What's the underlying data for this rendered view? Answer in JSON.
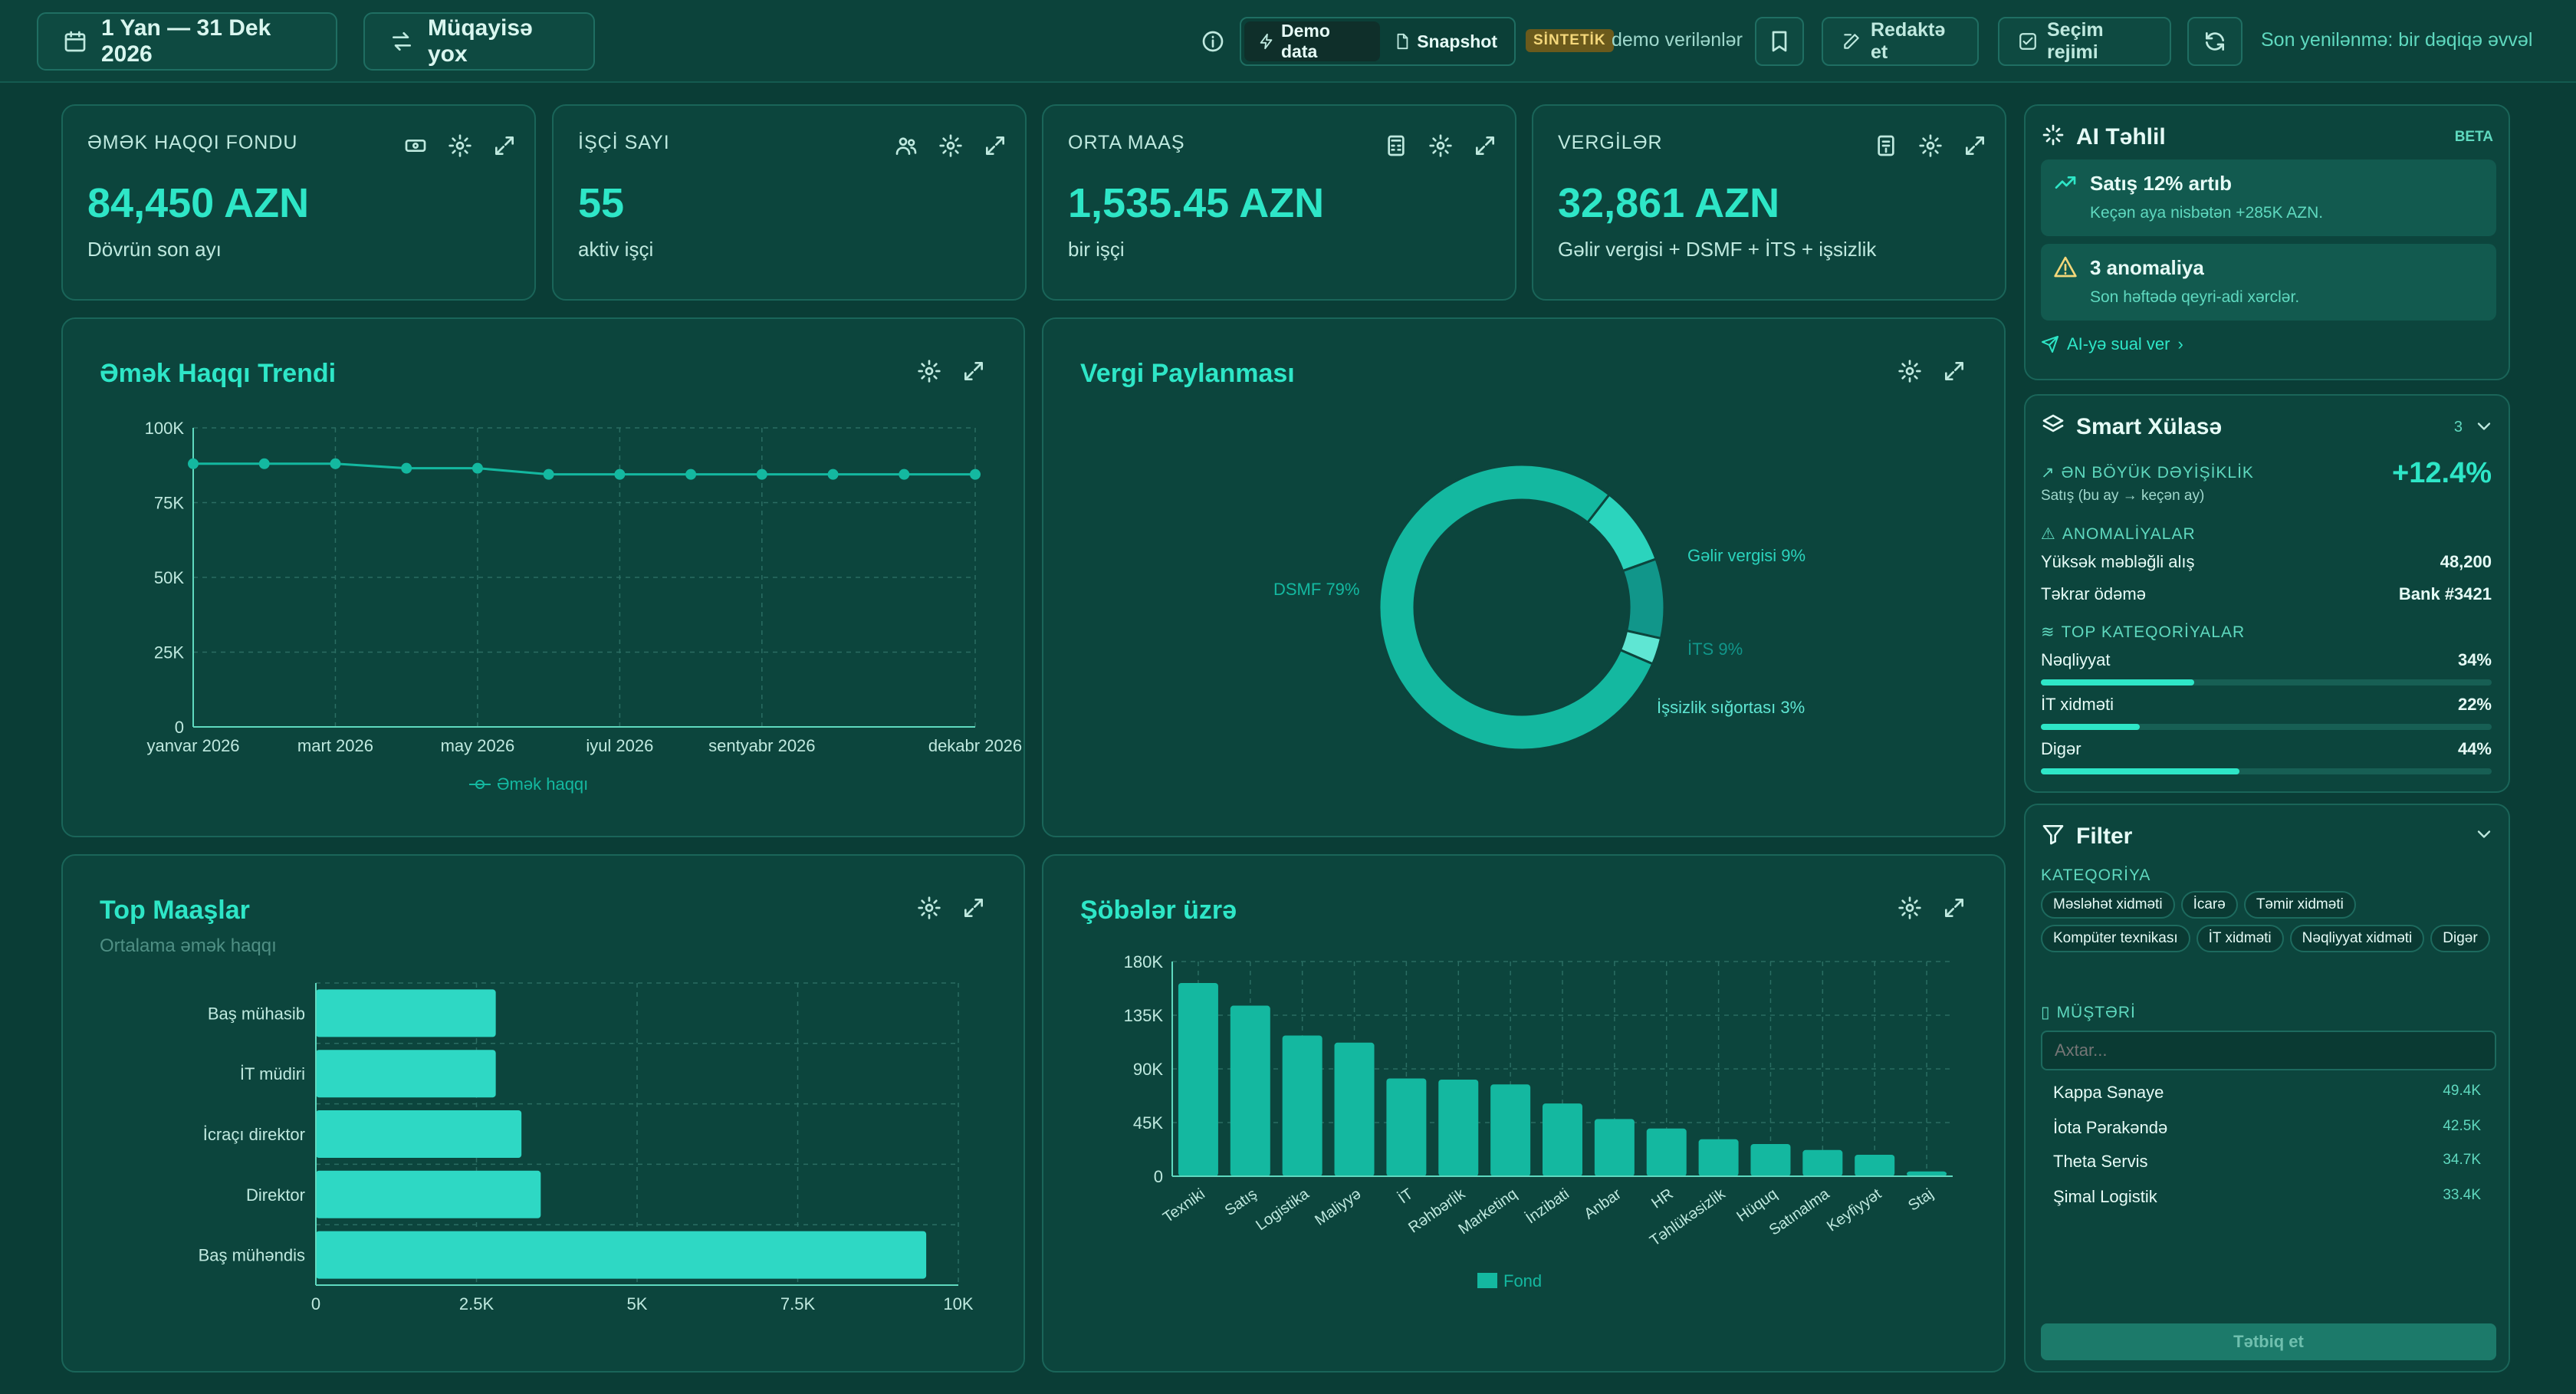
{
  "topbar": {
    "date_range": "1 Yan — 31 Dek 2026",
    "compare": "Müqayisə yox",
    "demo_data": "Demo data",
    "snapshot": "Snapshot",
    "synthetic_badge": "SİNTETİK",
    "synthetic_text": "demo verilənlər",
    "edit": "Redaktə et",
    "selection_mode": "Seçim rejimi",
    "last_update": "Son yenilənmə: bir dəqiqə əvvəl"
  },
  "kpis": [
    {
      "title": "ƏMƏK HAQQI FONDU",
      "value": "84,450 AZN",
      "sub": "Dövrün son ayı",
      "icon": "banknote-icon"
    },
    {
      "title": "İŞÇİ SAYI",
      "value": "55",
      "sub": "aktiv işçi",
      "icon": "users-icon"
    },
    {
      "title": "ORTA MAAŞ",
      "value": "1,535.45 AZN",
      "sub": "bir işçi",
      "icon": "calculator-icon"
    },
    {
      "title": "VERGİLƏR",
      "value": "32,861 AZN",
      "sub": "Gəlir vergisi + DSMF + İTS + işsizlik",
      "icon": "receipt-icon"
    }
  ],
  "charts": {
    "trend_title": "Əmək Haqqı Trendi",
    "tax_title": "Vergi Paylanması",
    "top_title": "Top Maaşlar",
    "top_sub": "Ortalama əmək haqqı",
    "dept_title": "Şöbələr üzrə"
  },
  "chart_data": [
    {
      "type": "line",
      "title": "Əmək Haqqı Trendi",
      "x": [
        "yanvar 2026",
        "fevral 2026",
        "mart 2026",
        "aprel 2026",
        "may 2026",
        "iyun 2026",
        "iyul 2026",
        "avqust 2026",
        "sentyabr 2026",
        "oktyabr 2026",
        "noyabr 2026",
        "dekabr 2026"
      ],
      "x_ticks": [
        "yanvar 2026",
        "mart 2026",
        "may 2026",
        "iyul 2026",
        "sentyabr 2026",
        "dekabr 2026"
      ],
      "series": [
        {
          "name": "Əmək haqqı",
          "values": [
            88000,
            88000,
            88000,
            86500,
            86500,
            84450,
            84450,
            84450,
            84450,
            84450,
            84450,
            84450
          ]
        }
      ],
      "ylim": [
        0,
        100000
      ],
      "y_ticks": [
        "0",
        "25K",
        "50K",
        "75K",
        "100K"
      ],
      "grid": true,
      "legend": "bottom"
    },
    {
      "type": "pie",
      "title": "Vergi Paylanması",
      "labels": [
        "DSMF",
        "Gəlir vergisi",
        "İTS",
        "İşsizlik sığortası"
      ],
      "values": [
        79,
        9,
        9,
        3
      ],
      "display": [
        "DSMF 79%",
        "Gəlir vergisi 9%",
        "İTS 9%",
        "İşsizlik sığortası 3%"
      ]
    },
    {
      "type": "bar",
      "title": "Top Maaşlar",
      "subtitle": "Ortalama əmək haqqı",
      "orientation": "horizontal",
      "categories": [
        "Baş mühasib",
        "İT müdiri",
        "İcraçı direktor",
        "Direktor",
        "Baş mühəndis"
      ],
      "values": [
        2800,
        2800,
        3200,
        3500,
        9500
      ],
      "xlim": [
        0,
        10000
      ],
      "x_ticks": [
        "0",
        "2.5K",
        "5K",
        "7.5K",
        "10K"
      ],
      "grid": true
    },
    {
      "type": "bar",
      "title": "Şöbələr üzrə",
      "categories": [
        "Texniki",
        "Satış",
        "Logistika",
        "Maliyyə",
        "İT",
        "Rəhbərlik",
        "Marketinq",
        "İnzibati",
        "Anbar",
        "HR",
        "Təhlükəsizlik",
        "Hüquq",
        "Satınalma",
        "Keyfiyyət",
        "Staj"
      ],
      "series": [
        {
          "name": "Fond",
          "values": [
            162000,
            143000,
            118000,
            112000,
            82000,
            81000,
            77000,
            61000,
            48000,
            40000,
            31000,
            27000,
            22000,
            18000,
            4000
          ]
        }
      ],
      "ylim": [
        0,
        180000
      ],
      "y_ticks": [
        "0",
        "45K",
        "90K",
        "135K",
        "180K"
      ],
      "grid": true,
      "legend": "bottom"
    }
  ],
  "ai": {
    "title": "AI Təhlil",
    "beta": "BETA",
    "items": [
      {
        "title": "Satış 12% artıb",
        "text": "Keçən aya nisbətən +285K AZN."
      },
      {
        "title": "3 anomaliya",
        "text": "Son həftədə qeyri-adi xərclər."
      }
    ],
    "ask": "AI-yə sual ver"
  },
  "summary": {
    "title": "Smart Xülasə",
    "count": "3",
    "biggest_h": "ƏN BÖYÜK DƏYİŞİKLİK",
    "biggest_sub": "Satış (bu ay → keçən ay)",
    "biggest_value": "+12.4%",
    "anom_h": "ANOMALİYALAR",
    "anomalies": [
      {
        "label": "Yüksək məbləğli alış",
        "value": "48,200"
      },
      {
        "label": "Təkrar ödəmə",
        "value": "Bank #3421"
      }
    ],
    "top_h": "TOP KATEQORİYALAR",
    "categories": [
      {
        "label": "Nəqliyyat",
        "value": "34%",
        "pct": 34
      },
      {
        "label": "İT xidməti",
        "value": "22%",
        "pct": 22
      },
      {
        "label": "Digər",
        "value": "44%",
        "pct": 44
      }
    ]
  },
  "filter": {
    "title": "Filter",
    "cat_h": "KATEQORİYA",
    "chips": [
      "Məsləhət xidməti",
      "İcarə",
      "Təmir xidməti",
      "Kompüter texnikası",
      "İT xidməti",
      "Nəqliyyat xidməti",
      "Digər"
    ],
    "cust_h": "MÜŞTƏRİ",
    "search_placeholder": "Axtar...",
    "customers": [
      {
        "name": "Kappa Sənaye",
        "value": "49.4K"
      },
      {
        "name": "İota Pərakəndə",
        "value": "42.5K"
      },
      {
        "name": "Theta Servis",
        "value": "34.7K"
      },
      {
        "name": "Şimal Logistik",
        "value": "33.4K"
      }
    ],
    "apply": "Tətbiq et"
  },
  "colors": {
    "accent": "#2ee6c7",
    "bar": "#14b8a0",
    "bg": "#0a3d36",
    "card": "#0c453d"
  }
}
